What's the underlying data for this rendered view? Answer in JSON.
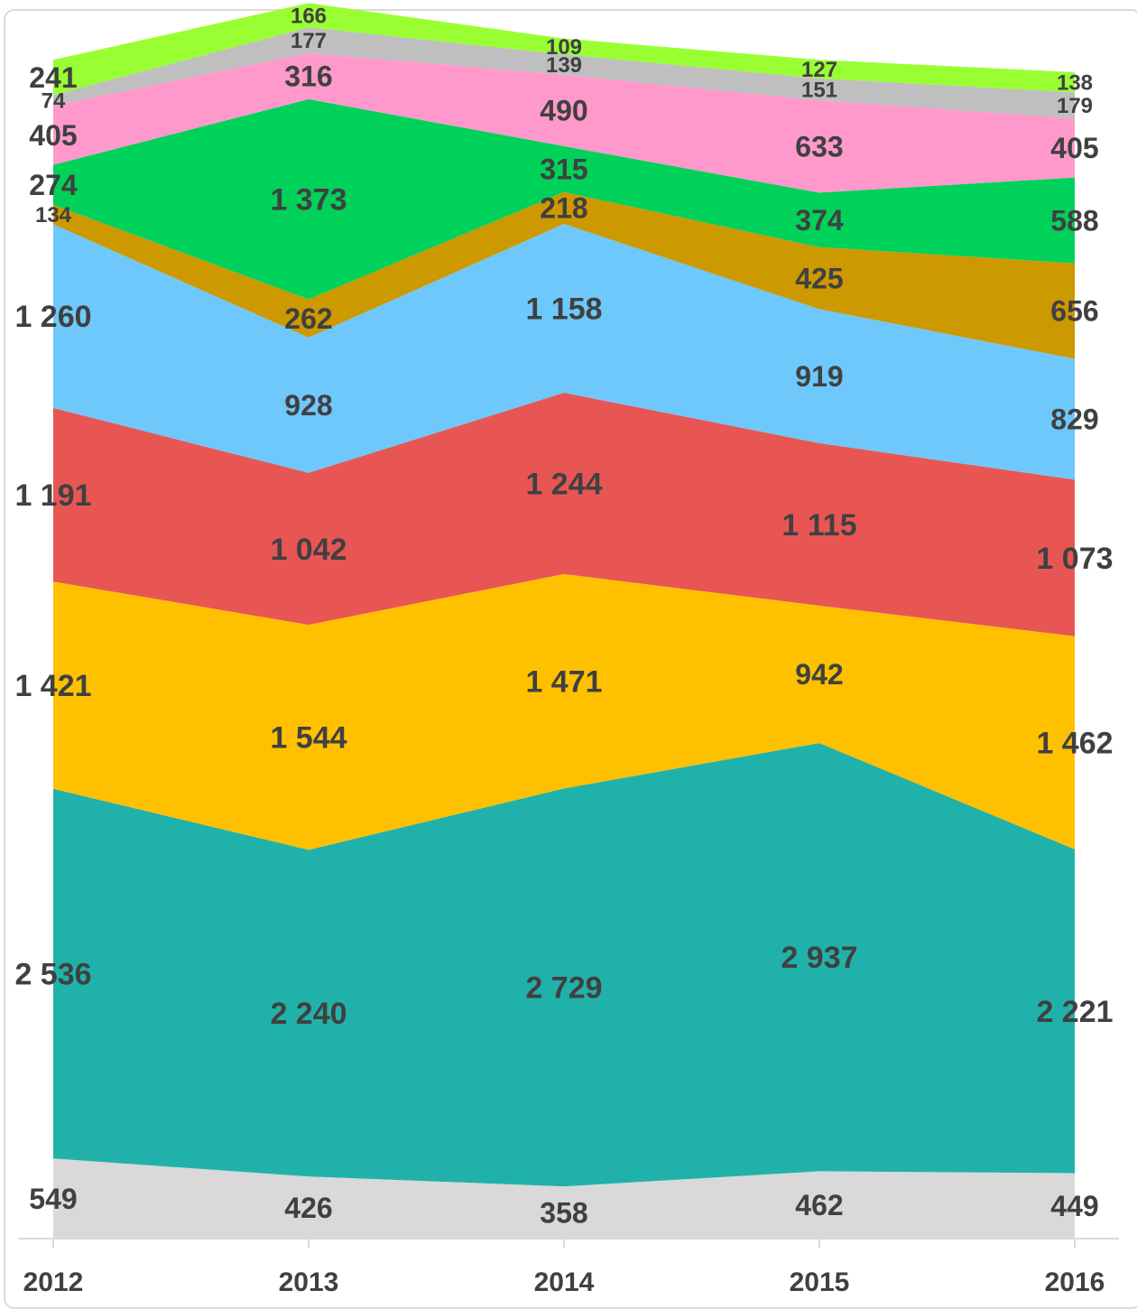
{
  "chart_data": {
    "type": "area",
    "stacked": true,
    "categories": [
      "2012",
      "2013",
      "2014",
      "2015",
      "2016"
    ],
    "series": [
      {
        "color": "#d9d9d9",
        "values": [
          549,
          426,
          358,
          462,
          449
        ]
      },
      {
        "color": "#20b2aa",
        "values": [
          2536,
          2240,
          2729,
          2937,
          2221
        ]
      },
      {
        "color": "#ffc000",
        "values": [
          1421,
          1544,
          1471,
          942,
          1462
        ]
      },
      {
        "color": "#e85654",
        "values": [
          1191,
          1042,
          1244,
          1115,
          1073
        ]
      },
      {
        "color": "#6ec8fb",
        "values": [
          1260,
          928,
          1158,
          919,
          829
        ]
      },
      {
        "color": "#cc9900",
        "values": [
          134,
          262,
          218,
          425,
          656
        ]
      },
      {
        "color": "#00d15a",
        "values": [
          274,
          1373,
          315,
          374,
          588
        ]
      },
      {
        "color": "#ff99cc",
        "values": [
          405,
          316,
          490,
          633,
          405
        ]
      },
      {
        "color": "#bfbfbf",
        "values": [
          74,
          177,
          139,
          151,
          179
        ]
      },
      {
        "color": "#99ff33",
        "values": [
          241,
          166,
          109,
          127,
          138
        ]
      }
    ],
    "data_labels": {
      "2012": [
        "549",
        "2 536",
        "1 421",
        "1 191",
        "1 260",
        "134",
        "274",
        "405",
        "74",
        "241"
      ],
      "2013": [
        "426",
        "2 240",
        "1 544",
        "1 042",
        "928",
        "262",
        "1 373",
        "316",
        "177",
        "166"
      ],
      "2014": [
        "358",
        "2 729",
        "1 471",
        "1 244",
        "1 158",
        "218",
        "315",
        "490",
        "139",
        "109"
      ],
      "2015": [
        "462",
        "2 937",
        "942",
        "1 115",
        "919",
        "425",
        "374",
        "633",
        "151",
        "127"
      ],
      "2016": [
        "449",
        "2 221",
        "1 462",
        "1 073",
        "829",
        "656",
        "588",
        "405",
        "179",
        "138"
      ]
    },
    "xlabel": "",
    "ylabel": "",
    "grid": false,
    "legend": "none"
  }
}
